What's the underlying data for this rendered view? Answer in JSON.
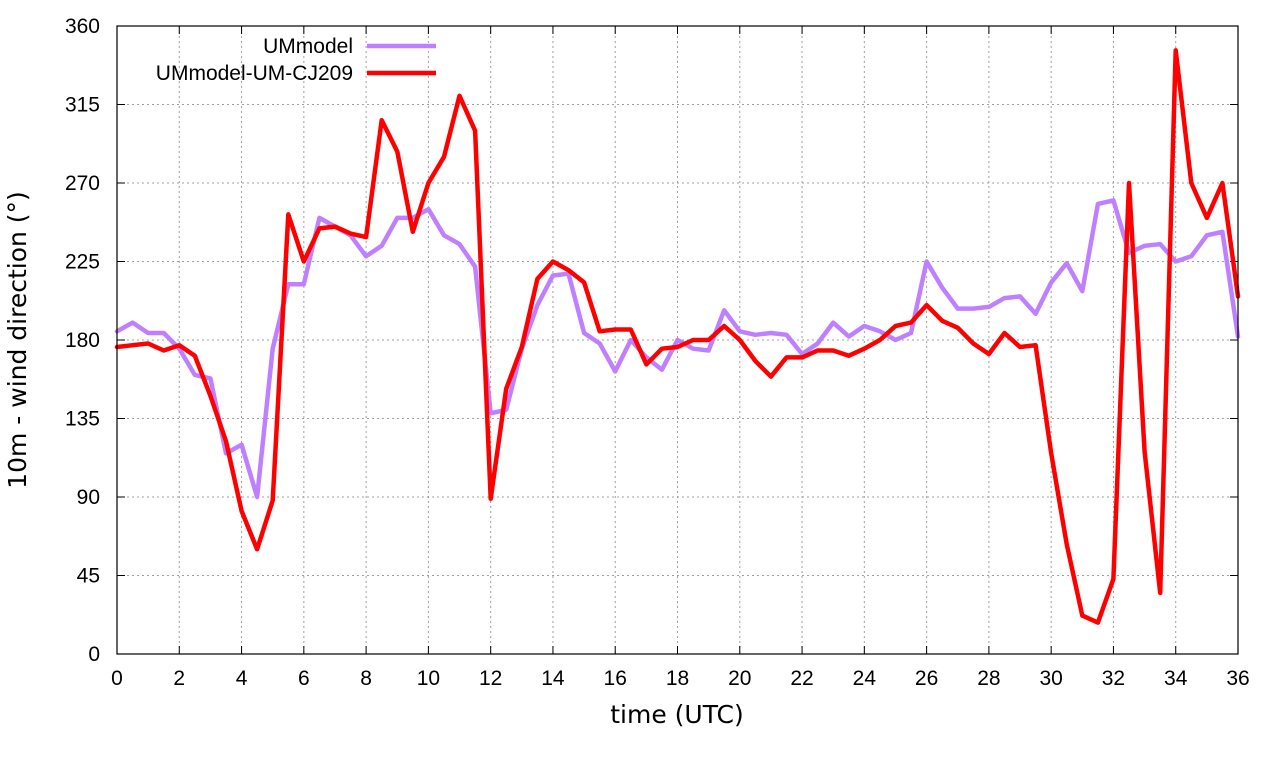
{
  "chart_data": {
    "type": "line",
    "xlabel": "time (UTC)",
    "ylabel": "10m - wind direction (°)",
    "xlim": [
      0,
      36
    ],
    "ylim": [
      0,
      360
    ],
    "xticks": [
      0,
      2,
      4,
      6,
      8,
      10,
      12,
      14,
      16,
      18,
      20,
      22,
      24,
      26,
      28,
      30,
      32,
      34,
      36
    ],
    "yticks": [
      0,
      45,
      90,
      135,
      180,
      225,
      270,
      315,
      360
    ],
    "grid": true,
    "legend_position": "top-left",
    "series": [
      {
        "name": "UMmodel",
        "color": "#bf80ff",
        "x": [
          0,
          0.5,
          1,
          1.5,
          2,
          2.5,
          3,
          3.5,
          4,
          4.5,
          5,
          5.5,
          6,
          6.5,
          7,
          7.5,
          8,
          8.5,
          9,
          9.5,
          10,
          10.5,
          11,
          11.5,
          12,
          12.5,
          13,
          13.5,
          14,
          14.5,
          15,
          15.5,
          16,
          16.5,
          17,
          17.5,
          18,
          18.5,
          19,
          19.5,
          20,
          20.5,
          21,
          21.5,
          22,
          22.5,
          23,
          23.5,
          24,
          24.5,
          25,
          25.5,
          26,
          26.5,
          27,
          27.5,
          28,
          28.5,
          29,
          29.5,
          30,
          30.5,
          31,
          31.5,
          32,
          32.5,
          33,
          33.5,
          34,
          34.5,
          35,
          35.5,
          36
        ],
        "y": [
          185,
          190,
          184,
          184,
          175,
          160,
          158,
          115,
          120,
          90,
          175,
          212,
          212,
          250,
          245,
          240,
          228,
          234,
          250,
          250,
          255,
          240,
          235,
          222,
          138,
          140,
          175,
          200,
          217,
          218,
          184,
          178,
          162,
          180,
          170,
          163,
          180,
          175,
          174,
          197,
          185,
          183,
          184,
          183,
          172,
          178,
          190,
          182,
          188,
          185,
          180,
          184,
          225,
          210,
          198,
          198,
          199,
          204,
          205,
          195,
          213,
          224,
          208,
          258,
          260,
          230,
          234,
          235,
          225,
          228,
          240,
          242,
          182
        ]
      },
      {
        "name": "UMmodel-UM-CJ209",
        "color": "#ff0000",
        "x": [
          0,
          0.5,
          1,
          1.5,
          2,
          2.5,
          3,
          3.5,
          4,
          4.5,
          5,
          5.5,
          6,
          6.5,
          7,
          7.5,
          8,
          8.5,
          9,
          9.5,
          10,
          10.5,
          11,
          11.5,
          12,
          12.5,
          13,
          13.5,
          14,
          14.5,
          15,
          15.5,
          16,
          16.5,
          17,
          17.5,
          18,
          18.5,
          19,
          19.5,
          20,
          20.5,
          21,
          21.5,
          22,
          22.5,
          23,
          23.5,
          24,
          24.5,
          25,
          25.5,
          26,
          26.5,
          27,
          27.5,
          28,
          28.5,
          29,
          29.5,
          30,
          30.5,
          31,
          31.5,
          32,
          32.5,
          33,
          33.5,
          34,
          34.5,
          35,
          35.5,
          36
        ],
        "y": [
          176,
          177,
          178,
          174,
          177,
          171,
          148,
          122,
          82,
          60,
          88,
          252,
          225,
          244,
          245,
          241,
          239,
          306,
          288,
          242,
          270,
          285,
          320,
          300,
          89,
          152,
          176,
          215,
          225,
          220,
          213,
          185,
          186,
          186,
          166,
          175,
          176,
          180,
          180,
          188,
          180,
          168,
          159,
          170,
          170,
          174,
          174,
          171,
          175,
          180,
          188,
          190,
          200,
          191,
          187,
          178,
          172,
          184,
          176,
          177,
          115,
          63,
          22,
          18,
          43,
          270,
          116,
          35,
          346,
          270,
          250,
          270,
          205
        ]
      }
    ]
  }
}
